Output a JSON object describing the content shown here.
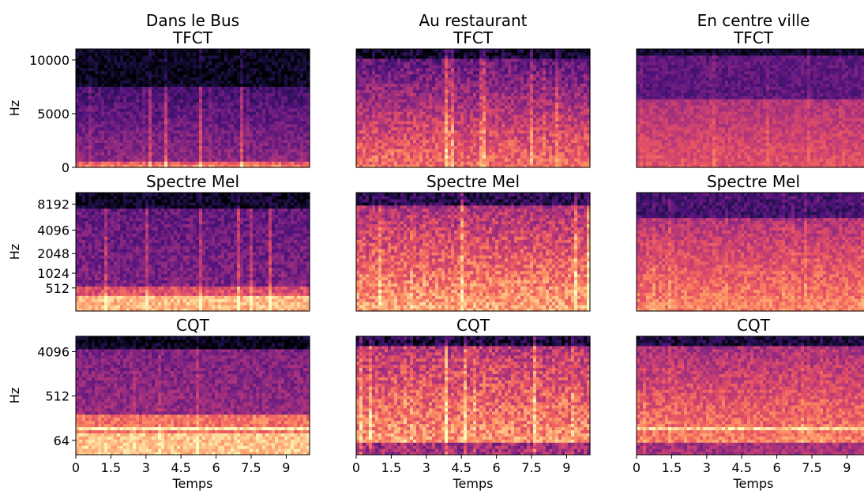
{
  "figure": {
    "column_titles": [
      "Dans le Bus",
      "Au restaurant",
      "En centre ville"
    ],
    "row_titles": [
      "TFCT",
      "Spectre Mel",
      "CQT"
    ],
    "ylabel": "Hz",
    "xlabel": "Temps",
    "colormap": "magma",
    "colors": [
      "#000004",
      "#1d1147",
      "#51127c",
      "#832681",
      "#b73779",
      "#e75263",
      "#fc8961",
      "#fec287",
      "#fcfdbf"
    ]
  },
  "chart_data": [
    {
      "type": "heatmap",
      "scene": "Dans le Bus",
      "title": "TFCT",
      "ylabel": "Hz",
      "yscale": "linear",
      "ylim": [
        0,
        11025
      ],
      "yticks": [
        0,
        5000,
        10000
      ],
      "ytick_labels": [
        "0",
        "5000",
        "10000"
      ],
      "xlim": [
        0,
        10
      ],
      "xtick_labels": []
    },
    {
      "type": "heatmap",
      "scene": "Au restaurant",
      "title": "TFCT",
      "yscale": "linear",
      "ylim": [
        0,
        11025
      ],
      "xlim": [
        0,
        10
      ],
      "xtick_labels": []
    },
    {
      "type": "heatmap",
      "scene": "En centre ville",
      "title": "TFCT",
      "yscale": "linear",
      "ylim": [
        0,
        11025
      ],
      "xlim": [
        0,
        10
      ],
      "xtick_labels": []
    },
    {
      "type": "heatmap",
      "scene": "Dans le Bus",
      "title": "Spectre Mel",
      "ylabel": "Hz",
      "yscale": "mel",
      "ylim": [
        0,
        11025
      ],
      "yticks": [
        512,
        1024,
        2048,
        4096,
        8192
      ],
      "ytick_labels": [
        "512",
        "1024",
        "2048",
        "4096",
        "8192"
      ],
      "xlim": [
        0,
        10
      ],
      "xtick_labels": []
    },
    {
      "type": "heatmap",
      "scene": "Au restaurant",
      "title": "Spectre Mel",
      "yscale": "mel",
      "ylim": [
        0,
        11025
      ],
      "xlim": [
        0,
        10
      ],
      "xtick_labels": []
    },
    {
      "type": "heatmap",
      "scene": "En centre ville",
      "title": "Spectre Mel",
      "yscale": "mel",
      "ylim": [
        0,
        11025
      ],
      "xlim": [
        0,
        10
      ],
      "xtick_labels": []
    },
    {
      "type": "heatmap",
      "scene": "Dans le Bus",
      "title": "CQT",
      "ylabel": "Hz",
      "yscale": "log",
      "yticks": [
        64,
        512,
        4096
      ],
      "ytick_labels": [
        "64",
        "512",
        "4096"
      ],
      "xlim": [
        0,
        10
      ],
      "xticks": [
        0,
        1.5,
        3,
        4.5,
        6,
        7.5,
        9
      ],
      "xtick_labels": [
        "0",
        "1.5",
        "3",
        "4.5",
        "6",
        "7.5",
        "9"
      ],
      "xlabel": "Temps"
    },
    {
      "type": "heatmap",
      "scene": "Au restaurant",
      "title": "CQT",
      "yscale": "log",
      "xlim": [
        0,
        10
      ],
      "xticks": [
        0,
        1.5,
        3,
        4.5,
        6,
        7.5,
        9
      ],
      "xtick_labels": [
        "0",
        "1.5",
        "3",
        "4.5",
        "6",
        "7.5",
        "9"
      ],
      "xlabel": "Temps"
    },
    {
      "type": "heatmap",
      "scene": "En centre ville",
      "title": "CQT",
      "yscale": "log",
      "xlim": [
        0,
        10
      ],
      "xticks": [
        0,
        1.5,
        3,
        4.5,
        6,
        7.5,
        9
      ],
      "xtick_labels": [
        "0",
        "1.5",
        "3",
        "4.5",
        "6",
        "7.5",
        "9"
      ],
      "xlabel": "Temps"
    }
  ]
}
